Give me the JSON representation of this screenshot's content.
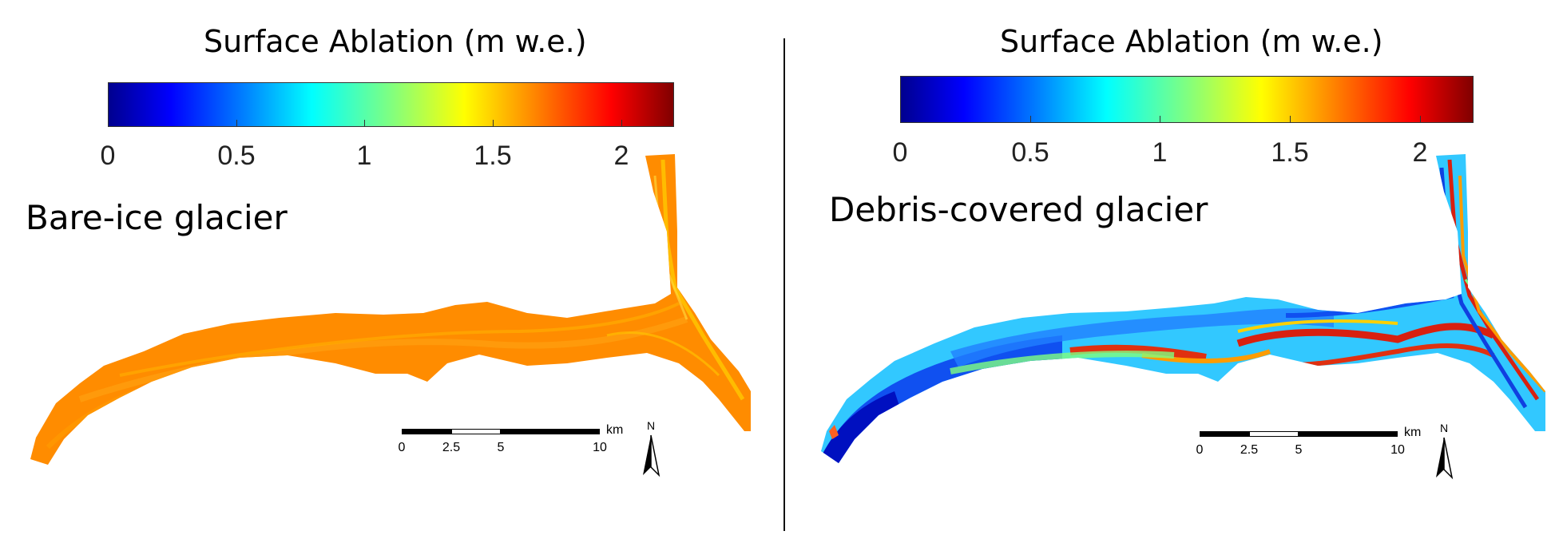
{
  "colors": {
    "colormap": [
      "#00008f",
      "#0000ff",
      "#0080ff",
      "#00ffff",
      "#80ff80",
      "#ffff00",
      "#ff8000",
      "#ff0000",
      "#800000"
    ],
    "bare_fill": "#ff8c00",
    "bare_streak": "#ffc800",
    "debris_core": "#1a60ff",
    "debris_mid": "#32c8ff",
    "debris_band_red": "#e03010",
    "debris_band_orange": "#ff9c00"
  },
  "left_panel": {
    "colorbar": {
      "title": "Surface Ablation",
      "unit": "(m w.e.)",
      "ticks": [
        "0",
        "0.5",
        "1",
        "1.5",
        "2"
      ],
      "range": [
        0,
        2.2
      ]
    },
    "label": "Bare-ice glacier",
    "scale": {
      "labels": [
        "0",
        "2.5",
        "5",
        "10"
      ],
      "unit": "km"
    },
    "north": "N"
  },
  "right_panel": {
    "colorbar": {
      "title": "Surface Ablation",
      "unit": "(m w.e.)",
      "ticks": [
        "0",
        "0.5",
        "1",
        "1.5",
        "2"
      ],
      "range": [
        0,
        2.2
      ]
    },
    "label": "Debris-covered glacier",
    "scale": {
      "labels": [
        "0",
        "2.5",
        "5",
        "10"
      ],
      "unit": "km"
    },
    "north": "N"
  }
}
